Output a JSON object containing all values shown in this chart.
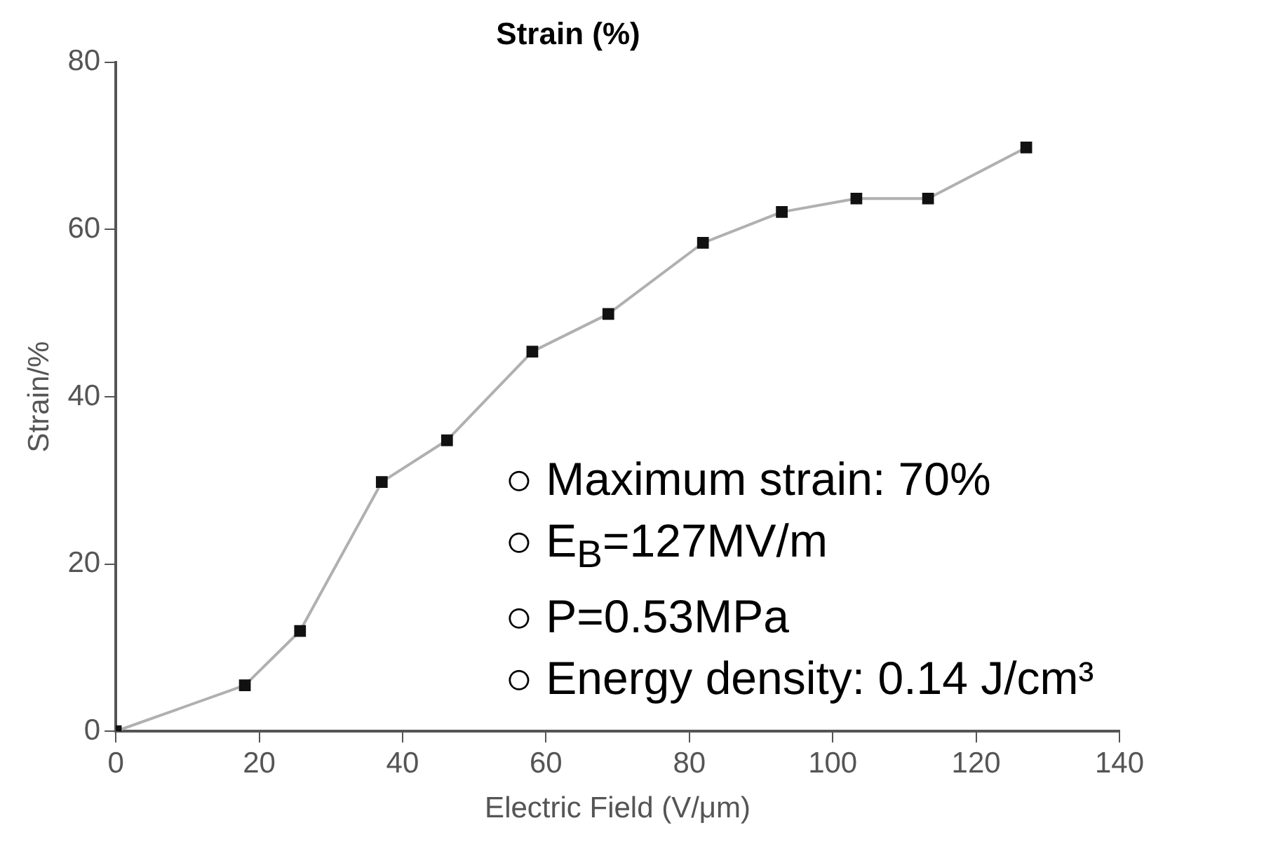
{
  "chart_data": {
    "type": "line",
    "title": "Strain (%)",
    "xlabel": "Electric Field (V/μm)",
    "ylabel": "Strain/%",
    "x": [
      0,
      18,
      25.7,
      37.1,
      46.2,
      58.1,
      68.7,
      81.9,
      92.9,
      103.3,
      113.3,
      127
    ],
    "series": [
      {
        "color": "#111111",
        "values": [
          0,
          5.5,
          12,
          29.8,
          34.8,
          45.4,
          49.9,
          58.4,
          62.1,
          63.7,
          63.7,
          69.8
        ]
      }
    ],
    "xlim": [
      0,
      140
    ],
    "xticks": [
      0,
      20,
      40,
      60,
      80,
      100,
      120,
      140
    ],
    "ylim": [
      0,
      80
    ],
    "yticks": [
      0,
      20,
      40,
      60,
      80
    ],
    "grid": false,
    "legend": false,
    "marker": "square",
    "line_style": "solid",
    "annotations": [
      "○ Maximum strain: 70%",
      "○ E$_{B}$=127MV/m",
      "○ P=0.53MPa",
      "○ Energy density: 0.14 J/cm³"
    ]
  }
}
